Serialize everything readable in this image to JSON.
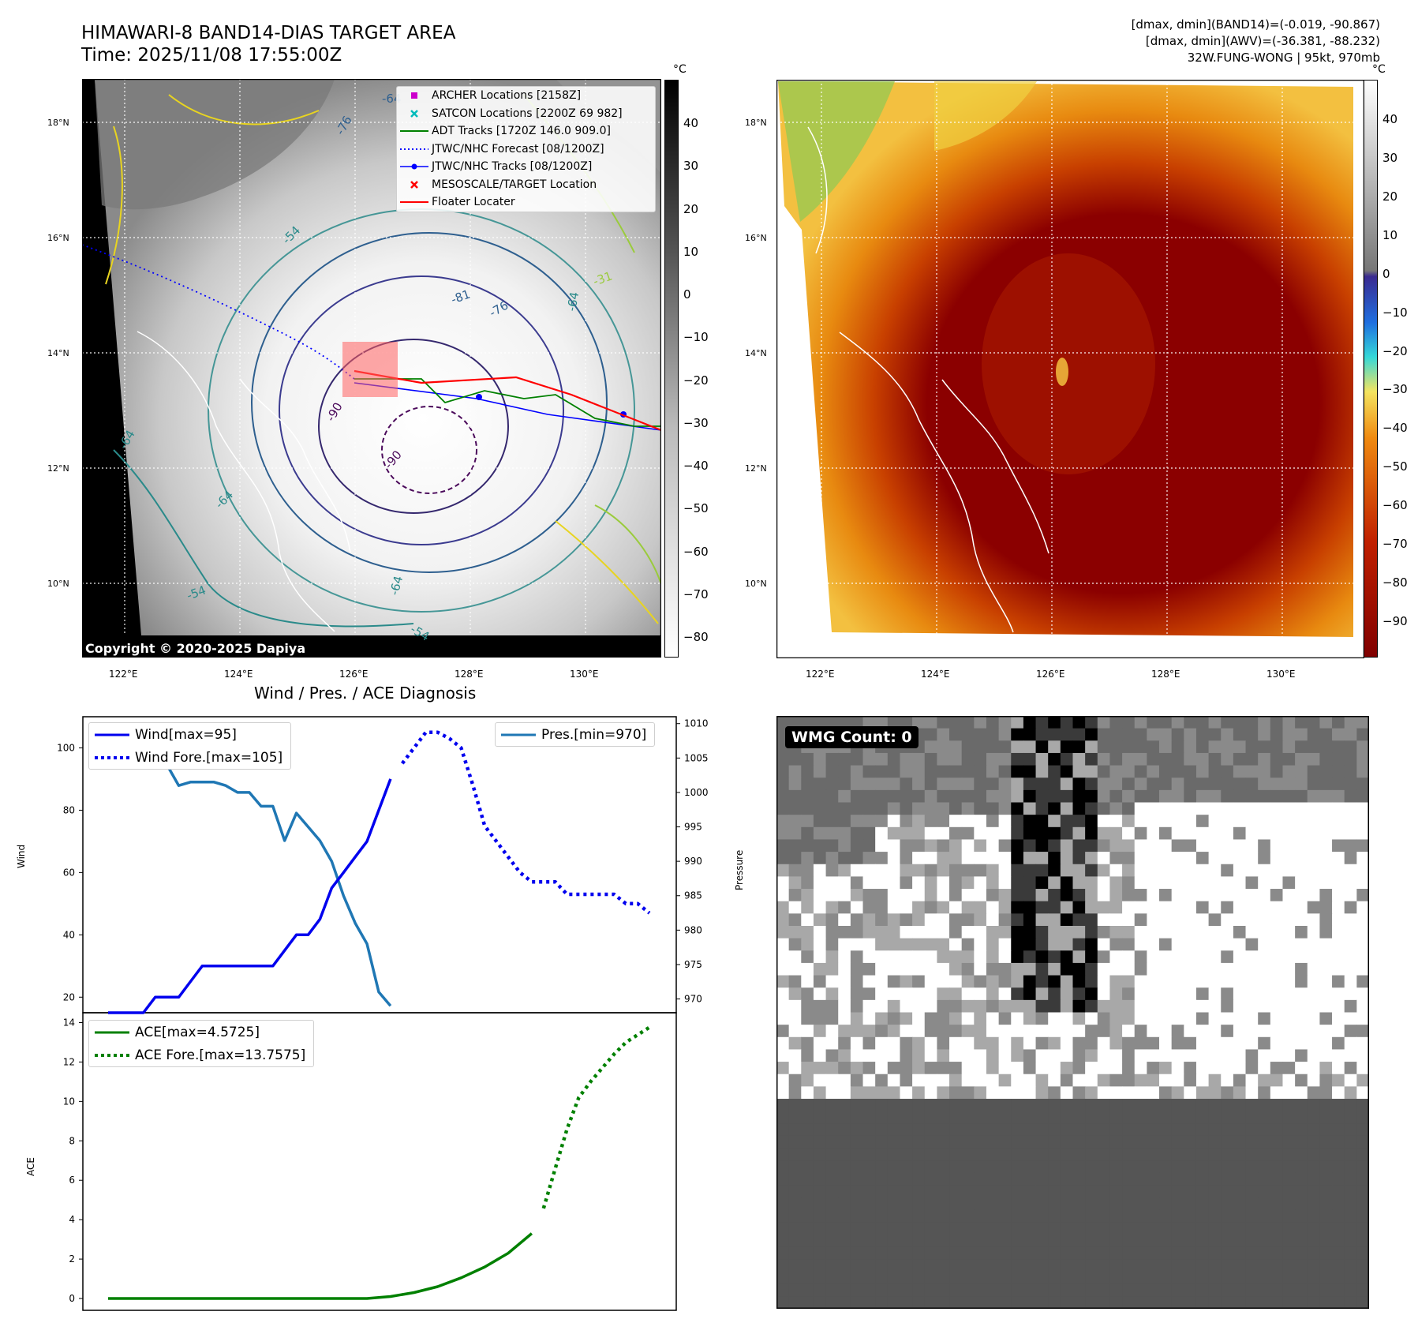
{
  "header": {
    "title_line1": "HIMAWARI-8 BAND14-DIAS TARGET AREA",
    "title_line2": "Time: 2025/11/08 17:55:00Z",
    "info_line1": "[dmax, dmin](BAND14)=(-0.019, -90.867)",
    "info_line2": "[dmax, dmin](AWV)=(-36.381, -88.232)",
    "info_line3": "32W.FUNG-WONG | 95kt, 970mb"
  },
  "map": {
    "lon_labels": [
      "122°E",
      "124°E",
      "126°E",
      "128°E",
      "130°E"
    ],
    "lat_labels": [
      "18°N",
      "16°N",
      "14°N",
      "12°N",
      "10°N"
    ],
    "contour_labels": [
      "-64",
      "-76",
      "-81",
      "-76",
      "-54",
      "-31",
      "-64",
      "-90",
      "-90",
      "-64",
      "-64",
      "-54",
      "-64",
      "-54"
    ],
    "copyright": "Copyright © 2020-2025 Dapiya",
    "colors": {
      "archer": "#cc00cc",
      "satcon": "#00bbbb",
      "adt": "#008000",
      "forecast": "#0000ff",
      "tracks": "#0000ff",
      "target": "#ff0000",
      "floater": "#ff0000"
    }
  },
  "legend_map": {
    "items": [
      "ARCHER Locations [2158Z]",
      "SATCON Locations [2200Z 69 982]",
      "ADT Tracks [1720Z 146.0 909.0]",
      "JTWC/NHC Forecast [08/1200Z]",
      "JTWC/NHC Tracks [08/1200Z]",
      "MESOSCALE/TARGET Location",
      "Floater Locater"
    ]
  },
  "colorbar_left": {
    "unit": "°C",
    "ticks": [
      "40",
      "30",
      "20",
      "10",
      "0",
      "−10",
      "−20",
      "−30",
      "−40",
      "−50",
      "−60",
      "−70",
      "−80"
    ]
  },
  "colorbar_right": {
    "unit": "°C",
    "ticks": [
      "40",
      "30",
      "20",
      "10",
      "0",
      "−10",
      "−20",
      "−30",
      "−40",
      "−50",
      "−60",
      "−70",
      "−80",
      "−90"
    ]
  },
  "diagnosis": {
    "title": "Wind / Pres. / ACE Diagnosis",
    "wind_ylabel": "Wind",
    "pres_ylabel": "Pressure",
    "ace_ylabel": "ACE",
    "wind_ticks": [
      "100",
      "80",
      "60",
      "40",
      "20"
    ],
    "pres_ticks": [
      "1010",
      "1005",
      "1000",
      "995",
      "990",
      "985",
      "980",
      "975",
      "970"
    ],
    "ace_ticks": [
      "14",
      "12",
      "10",
      "8",
      "6",
      "4",
      "2",
      "0"
    ],
    "legend_wind": "Wind[max=95]",
    "legend_wind_fore": "Wind Fore.[max=105]",
    "legend_pres": "Pres.[min=970]",
    "legend_ace": "ACE[max=4.5725]",
    "legend_ace_fore": "ACE Fore.[max=13.7575]",
    "colors": {
      "wind": "#0000ee",
      "pres": "#1f77b4",
      "ace": "#008000"
    }
  },
  "wmg": {
    "label": "WMG Count: 0"
  },
  "chart_data": [
    {
      "type": "line",
      "name": "wind_pressure",
      "x_index_range": [
        0,
        46
      ],
      "ylim_wind": [
        15,
        110
      ],
      "ylim_pres": [
        968,
        1011
      ],
      "series": [
        {
          "name": "Wind[max=95]",
          "axis": "wind",
          "x": [
            0,
            1,
            2,
            3,
            4,
            5,
            6,
            7,
            8,
            9,
            10,
            11,
            12,
            13,
            14,
            15,
            16,
            17,
            18,
            19,
            20,
            21,
            22,
            23,
            24
          ],
          "values": [
            15,
            15,
            15,
            15,
            20,
            20,
            20,
            25,
            30,
            30,
            30,
            30,
            30,
            30,
            30,
            35,
            40,
            40,
            45,
            55,
            60,
            65,
            70,
            80,
            90
          ]
        },
        {
          "name": "Wind Fore.[max=105]",
          "axis": "wind",
          "x": [
            25,
            26,
            27,
            28,
            29,
            30,
            31,
            32,
            33,
            34,
            35,
            36,
            37,
            38,
            39,
            40,
            41,
            42,
            43,
            44,
            45,
            46
          ],
          "values": [
            95,
            100,
            105,
            105,
            103,
            100,
            88,
            75,
            70,
            65,
            60,
            57,
            57,
            57,
            53,
            53,
            53,
            53,
            53,
            50,
            50,
            47
          ]
        },
        {
          "name": "Pres.[min=970]",
          "axis": "pres",
          "x": [
            0,
            1,
            2,
            3,
            4,
            5,
            6,
            7,
            8,
            9,
            10,
            11,
            12,
            13,
            14,
            15,
            16,
            17,
            18,
            19,
            20,
            21,
            22,
            23,
            24
          ],
          "values": [
            1010,
            1006,
            1006,
            1006,
            1005,
            1004,
            1001,
            1001.5,
            1001.5,
            1001.5,
            1001,
            1000,
            1000,
            998,
            998,
            993,
            997,
            995,
            993,
            990,
            985,
            981,
            978,
            971,
            969
          ]
        }
      ]
    },
    {
      "type": "line",
      "name": "ace",
      "x_index_range": [
        0,
        46
      ],
      "ylim": [
        -0.6,
        14.5
      ],
      "series": [
        {
          "name": "ACE[max=4.5725]",
          "x": [
            0,
            5,
            10,
            15,
            18,
            20,
            22,
            24,
            26,
            28,
            30,
            32,
            34,
            36
          ],
          "values": [
            0,
            0,
            0,
            0,
            0,
            0,
            0,
            0.1,
            0.3,
            0.6,
            1.05,
            1.6,
            2.3,
            3.3
          ]
        },
        {
          "name": "ACE Fore.[max=13.7575]",
          "x": [
            37,
            38,
            39,
            40,
            41,
            42,
            43,
            44,
            46
          ],
          "values": [
            4.5725,
            6.6,
            8.6,
            10.2,
            11.0,
            11.7,
            12.4,
            13.0,
            13.7575
          ]
        }
      ]
    }
  ]
}
